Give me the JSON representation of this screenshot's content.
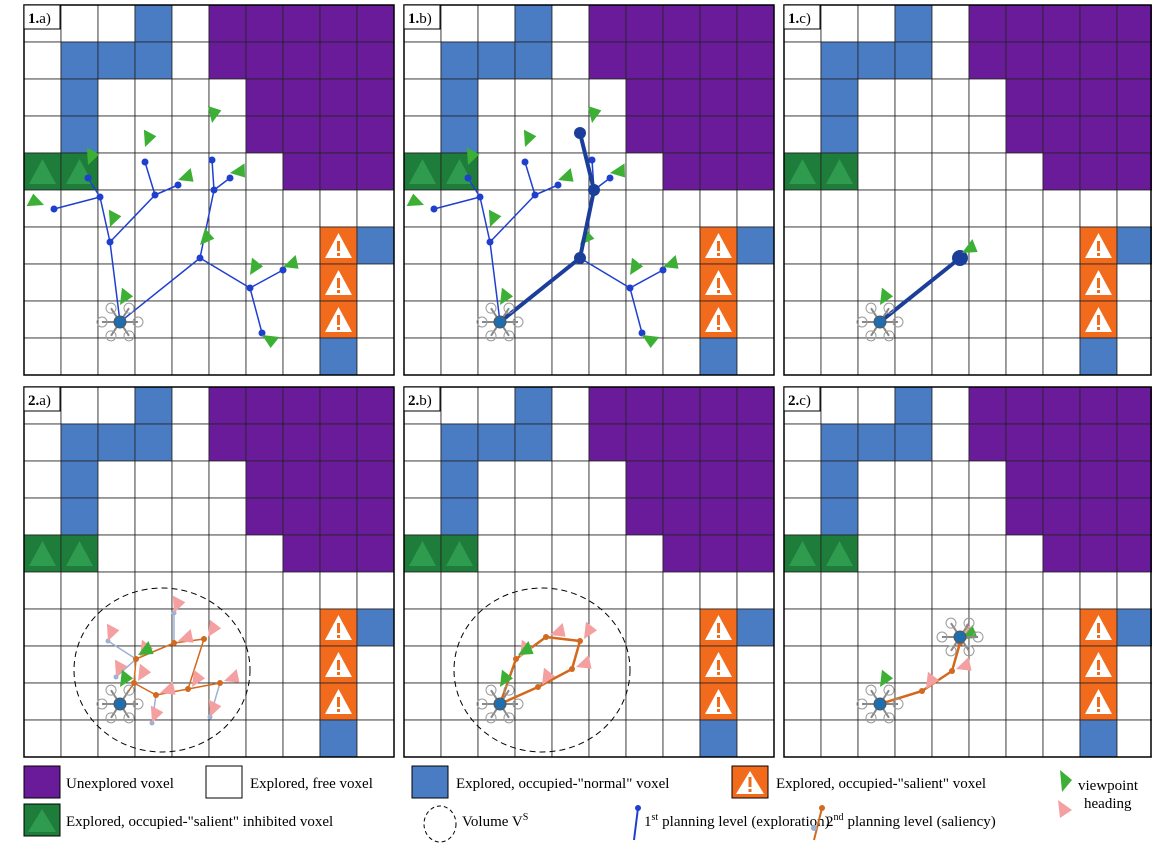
{
  "panels": [
    {
      "number": "1.",
      "letter": "a)"
    },
    {
      "number": "1.",
      "letter": "b)"
    },
    {
      "number": "1.",
      "letter": "c)"
    },
    {
      "number": "2.",
      "letter": "a)"
    },
    {
      "number": "2.",
      "letter": "b)"
    },
    {
      "number": "2.",
      "letter": "c)"
    }
  ],
  "legend": {
    "unexplored": "Unexplored voxel",
    "free": "Explored, free voxel",
    "normal": "Explored, occupied-\"normal\" voxel",
    "salient": "Explored, occupied-\"salient\" voxel",
    "inhibited": "Explored, occupied-\"salient\" inhibited voxel",
    "volume": {
      "text": "Volume V",
      "sup": "S"
    },
    "level1": {
      "ordinal": "1",
      "sup": "st",
      "text": "planning level (exploration)"
    },
    "level2": {
      "ordinal": "2",
      "sup": "nd",
      "text": "planning level (saliency)"
    },
    "viewpoint": "viewpoint",
    "heading": "heading"
  }
}
